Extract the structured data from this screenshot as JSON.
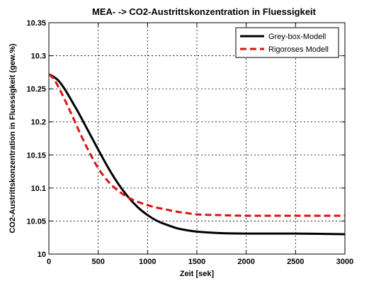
{
  "chart_data": {
    "type": "line",
    "title": "MEA- -> CO2-Austrittskonzentration in Fluessigkeit",
    "xlabel": "Zeit [sek]",
    "ylabel": "CO2-Austrittskonzentration in Fluessigkeit (gew.%)",
    "xlim": [
      0,
      3000
    ],
    "ylim": [
      10,
      10.35
    ],
    "xticks": [
      0,
      500,
      1000,
      1500,
      2000,
      2500,
      3000
    ],
    "xtick_labels": [
      "0",
      "500",
      "1000",
      "1500",
      "2000",
      "2500",
      "3000"
    ],
    "yticks": [
      10,
      10.05,
      10.1,
      10.15,
      10.2,
      10.25,
      10.3,
      10.35
    ],
    "ytick_labels": [
      "10",
      "10.05",
      "10.1",
      "10.15",
      "10.2",
      "10.25",
      "10.3",
      "10.35"
    ],
    "grid": true,
    "legend_position": "top-right",
    "series": [
      {
        "name": "Grey-box-Modell",
        "color": "#000000",
        "dash": "solid",
        "x": [
          0,
          50,
          100,
          150,
          200,
          250,
          300,
          400,
          500,
          600,
          700,
          800,
          900,
          1000,
          1100,
          1200,
          1300,
          1400,
          1500,
          1700,
          2000,
          2500,
          3000
        ],
        "y": [
          10.272,
          10.268,
          10.262,
          10.252,
          10.24,
          10.227,
          10.214,
          10.186,
          10.158,
          10.131,
          10.107,
          10.087,
          10.071,
          10.059,
          10.05,
          10.044,
          10.039,
          10.036,
          10.034,
          10.032,
          10.031,
          10.031,
          10.03
        ]
      },
      {
        "name": "Rigoroses Modell",
        "color": "#e01010",
        "dash": "dashed",
        "x": [
          0,
          50,
          100,
          150,
          200,
          250,
          300,
          400,
          500,
          600,
          700,
          800,
          900,
          1000,
          1100,
          1200,
          1300,
          1400,
          1500,
          1700,
          2000,
          2500,
          3000
        ],
        "y": [
          10.272,
          10.265,
          10.252,
          10.237,
          10.221,
          10.205,
          10.188,
          10.157,
          10.13,
          10.11,
          10.096,
          10.086,
          10.079,
          10.074,
          10.07,
          10.067,
          10.064,
          10.062,
          10.06,
          10.059,
          10.058,
          10.058,
          10.058
        ]
      }
    ]
  }
}
